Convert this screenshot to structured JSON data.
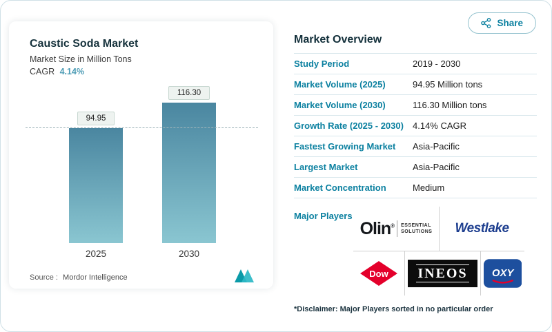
{
  "share": {
    "label": "Share"
  },
  "chart_panel": {
    "title": "Caustic Soda Market",
    "subtitle": "Market Size in Million Tons",
    "cagr_label": "CAGR",
    "cagr_value": "4.14%",
    "source_label": "Source :",
    "source_value": "Mordor Intelligence"
  },
  "chart_data": {
    "type": "bar",
    "title": "Caustic Soda Market",
    "subtitle": "Market Size in Million Tons",
    "categories": [
      "2025",
      "2030"
    ],
    "values": [
      94.95,
      116.3
    ],
    "value_labels": [
      "94.95",
      "116.30"
    ],
    "ylabel": "Million Tons",
    "ylim": [
      0,
      130
    ],
    "reference_line": 94.95,
    "cagr_pct": 4.14,
    "legend": "none",
    "grid": "off"
  },
  "overview": {
    "title": "Market Overview",
    "rows": [
      {
        "label": "Study Period",
        "value": "2019 - 2030"
      },
      {
        "label": "Market Volume (2025)",
        "value": "94.95 Million tons"
      },
      {
        "label": "Market Volume (2030)",
        "value": "116.30 Million tons"
      },
      {
        "label": "Growth Rate (2025 - 2030)",
        "value": "4.14% CAGR"
      },
      {
        "label": "Fastest Growing Market",
        "value": "Asia-Pacific"
      },
      {
        "label": "Largest Market",
        "value": "Asia-Pacific"
      },
      {
        "label": "Market Concentration",
        "value": "Medium"
      }
    ],
    "major_players_label": "Major Players",
    "players": [
      {
        "name": "Olin",
        "reg": "®",
        "tagline_line1": "ESSENTIAL",
        "tagline_line2": "SOLUTIONS"
      },
      {
        "name": "Westlake"
      },
      {
        "name": "Dow"
      },
      {
        "name": "INEOS"
      },
      {
        "name": "OXY"
      }
    ],
    "disclaimer": "*Disclaimer: Major Players sorted in no particular order"
  },
  "colors": {
    "accent": "#0b80a0",
    "heading": "#122f3a",
    "bar_top": "#4a86a0",
    "bar_bottom": "#8ac6d1",
    "dow_red": "#e4002b",
    "oxy_blue": "#1d4f9e",
    "westlake_blue": "#1d3e8f"
  }
}
